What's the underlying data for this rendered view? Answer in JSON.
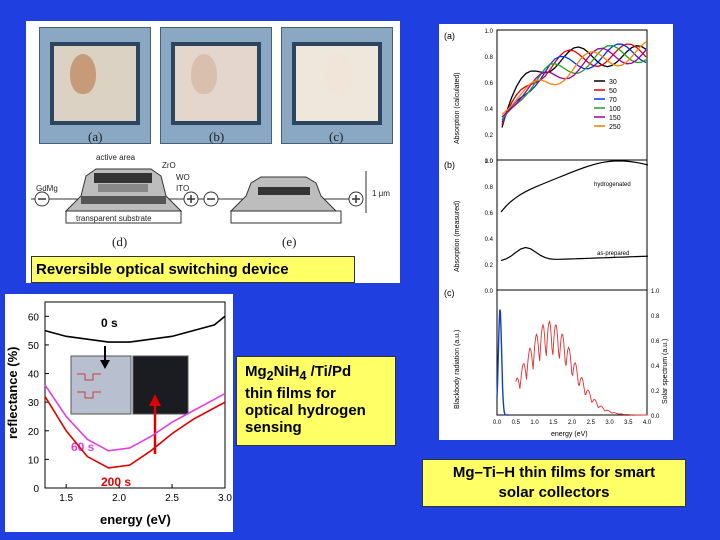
{
  "device_panel": {
    "captions": [
      "(a)",
      "(b)",
      "(c)",
      "(d)",
      "(e)"
    ],
    "layer_labels": {
      "active_area": "active area",
      "zro": "ZrO",
      "wo": "WO",
      "ito": "ITO",
      "gdmg": "GdMg",
      "substrate": "transparent substrate",
      "thickness": "1 μm"
    },
    "title": "Reversible optical switching device"
  },
  "reflectance_panel": {
    "chart_data": {
      "type": "line",
      "xlabel": "energy (eV)",
      "ylabel": "reflectance (%)",
      "xlim": [
        1.3,
        3.0
      ],
      "ylim": [
        0,
        65
      ],
      "xticks": [
        "1.5",
        "2.0",
        "2.5",
        "3.0"
      ],
      "yticks": [
        "0",
        "10",
        "20",
        "30",
        "40",
        "50",
        "60"
      ],
      "series": [
        {
          "name": "0 s",
          "color": "#000000",
          "x": [
            1.3,
            1.5,
            1.7,
            1.9,
            2.1,
            2.3,
            2.5,
            2.7,
            2.9,
            3.0
          ],
          "y": [
            55,
            53,
            52,
            51,
            51,
            52,
            53,
            55,
            57,
            60
          ]
        },
        {
          "name": "60 s",
          "color": "#e040e0",
          "x": [
            1.3,
            1.5,
            1.7,
            1.9,
            2.1,
            2.3,
            2.5,
            2.7,
            2.9,
            3.0
          ],
          "y": [
            36,
            25,
            17,
            13,
            14,
            18,
            23,
            27,
            31,
            33
          ]
        },
        {
          "name": "200 s",
          "color": "#e00000",
          "x": [
            1.3,
            1.5,
            1.7,
            1.9,
            2.1,
            2.3,
            2.5,
            2.7,
            2.9,
            3.0
          ],
          "y": [
            32,
            20,
            11,
            7,
            8,
            13,
            19,
            24,
            28,
            30
          ]
        }
      ]
    }
  },
  "hydrogen_label": {
    "line1_pre": "Mg",
    "line1_sub1": "2",
    "line1_mid": "NiH",
    "line1_sub2": "4",
    "line1_post": " /Ti/Pd",
    "line2": "thin films for",
    "line3": "optical hydrogen",
    "line4": "sensing"
  },
  "absorption_panel": {
    "chart_a": {
      "tag": "(a)",
      "ylabel": "Absorption (calculated)",
      "yticks": [
        "0.2",
        "0.4",
        "0.6",
        "0.8",
        "1.0"
      ],
      "legend": [
        "30",
        "50",
        "70",
        "100",
        "150",
        "250"
      ],
      "colors": [
        "#000000",
        "#e00000",
        "#0030ff",
        "#20a020",
        "#a000a0",
        "#ff8000"
      ]
    },
    "chart_b": {
      "tag": "(b)",
      "ylabel": "Absorption (measured)",
      "yticks": [
        "0.2",
        "0.4",
        "0.6",
        "0.8",
        "1.0"
      ],
      "labels": [
        "hydrogenated",
        "as-prepared"
      ]
    },
    "chart_c": {
      "tag": "(c)",
      "ylabel_left": "Blackbody radiation (a.u.)",
      "ylabel_right": "Solar spectrum (a.u.)",
      "yticks_right": [
        "0.0",
        "0.2",
        "0.4",
        "0.6",
        "0.8",
        "1.0"
      ],
      "xticks": [
        "0.0",
        "0.5",
        "1.0",
        "1.5",
        "2.0",
        "2.5",
        "3.0",
        "3.5",
        "4.0"
      ],
      "xlabel": "energy (eV)"
    }
  },
  "solar_label": {
    "line1": "Mg–Ti–H thin films for smart",
    "line2": "solar collectors"
  }
}
